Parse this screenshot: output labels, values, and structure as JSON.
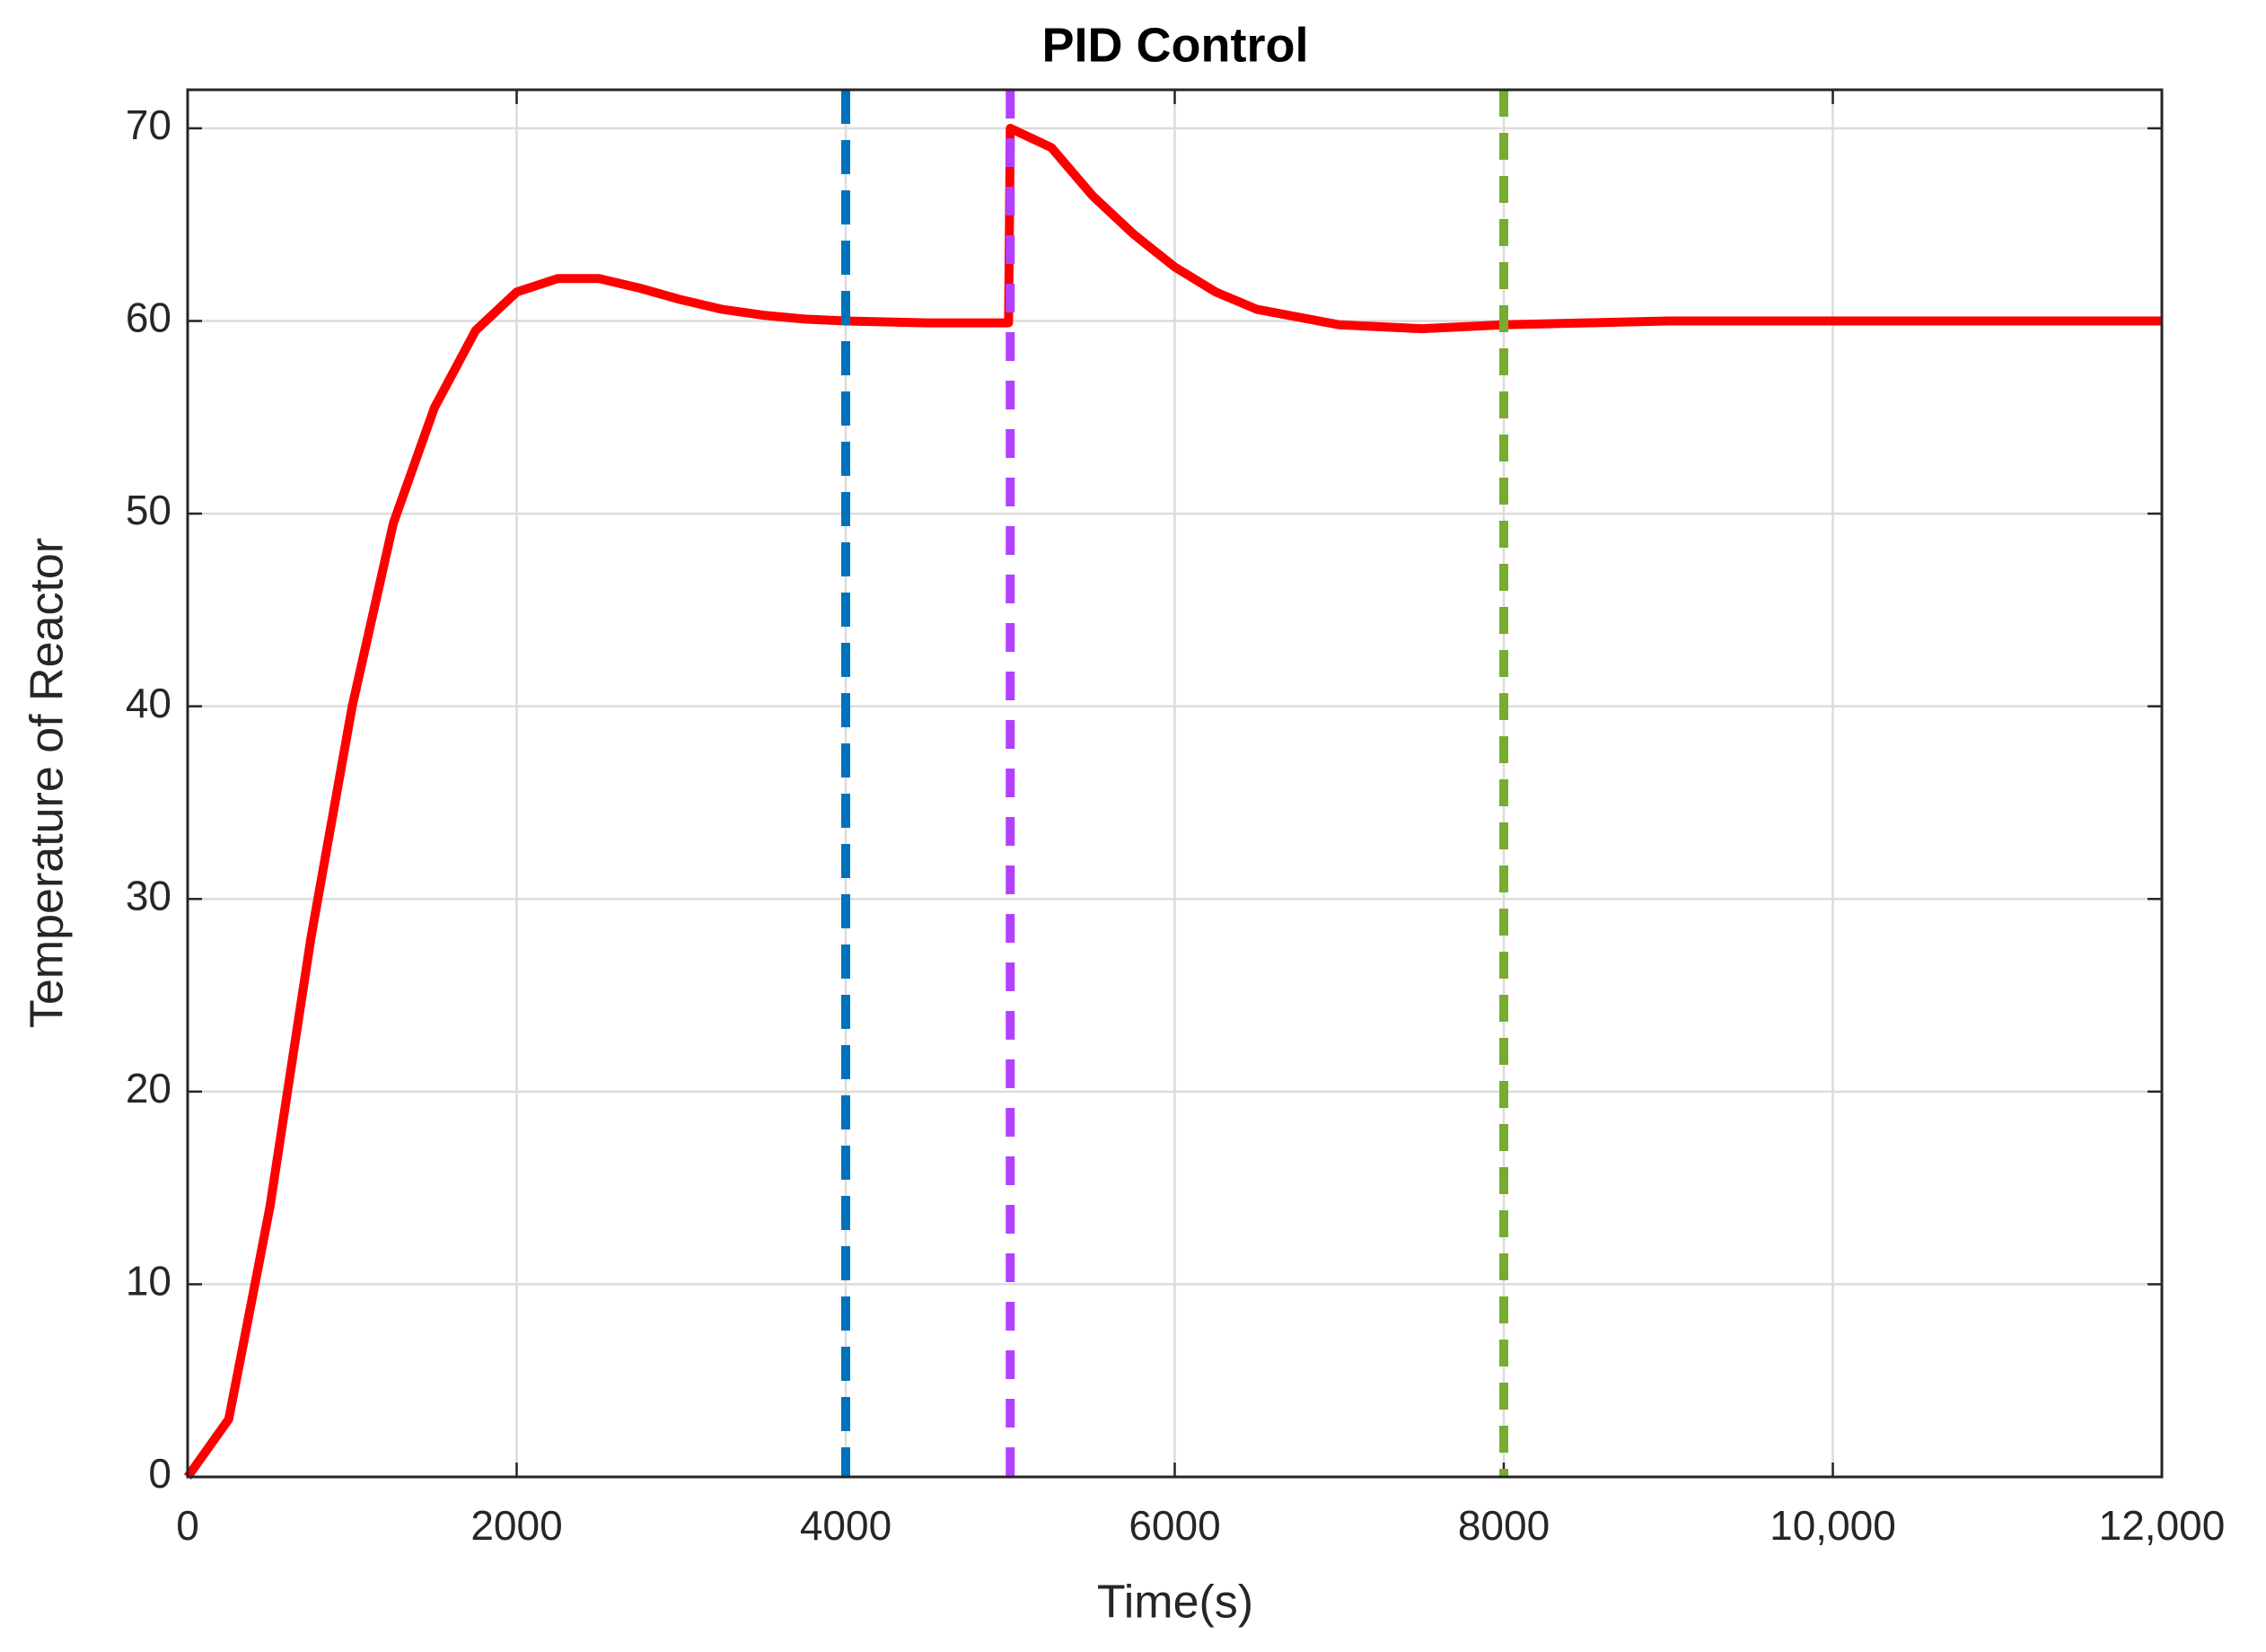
{
  "chart_data": {
    "type": "line",
    "title": "PID Control",
    "x_label": "Time(s)",
    "y_label": "Temperature of Reactor",
    "x": [
      0,
      250,
      500,
      750,
      1000,
      1250,
      1500,
      1750,
      2000,
      2250,
      2500,
      2750,
      3000,
      3250,
      3500,
      3750,
      4000,
      4500,
      4990,
      5000,
      5250,
      5500,
      5750,
      6000,
      6250,
      6500,
      7000,
      7500,
      8000,
      8500,
      9000,
      10000,
      12000
    ],
    "series": [
      {
        "color": "#ff0000",
        "values": [
          0,
          3,
          14,
          28,
          40,
          49.5,
          55.5,
          59.5,
          61.5,
          62.2,
          62.2,
          61.7,
          61.1,
          60.6,
          60.3,
          60.1,
          60.0,
          59.9,
          59.9,
          70,
          69,
          66.5,
          64.5,
          62.8,
          61.5,
          60.6,
          59.8,
          59.6,
          59.8,
          59.9,
          60,
          60,
          60
        ]
      }
    ],
    "vlines": [
      {
        "x": 4000,
        "color": "#0072bd"
      },
      {
        "x": 5000,
        "color": "#b340ff"
      },
      {
        "x": 8000,
        "color": "#77ac30"
      }
    ],
    "xlim": [
      0,
      12000
    ],
    "ylim": [
      0,
      72
    ],
    "xticks": [
      0,
      2000,
      4000,
      6000,
      8000,
      {
        "value": 10000,
        "label": "10,000"
      },
      {
        "value": 12000,
        "label": "12,000"
      }
    ],
    "yticks": [
      0,
      10,
      20,
      30,
      40,
      50,
      60,
      70
    ],
    "grid": true
  }
}
